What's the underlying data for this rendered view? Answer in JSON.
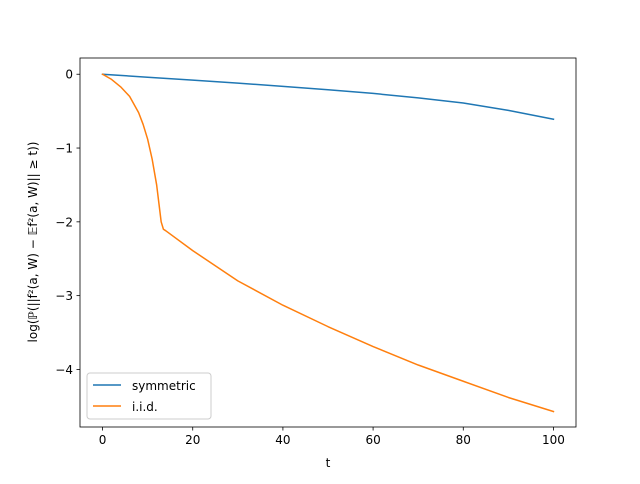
{
  "chart_data": {
    "type": "line",
    "xlabel": "t",
    "ylabel": "log(ℙ(||f²(a, W) − 𝔼f²(a, W)|| ≥ t))",
    "xlim": [
      -5,
      105
    ],
    "ylim": [
      -4.78,
      0.22
    ],
    "x_ticks": [
      0,
      20,
      40,
      60,
      80,
      100
    ],
    "y_ticks": [
      0,
      -1,
      -2,
      -3,
      -4
    ],
    "grid": false,
    "legend_position": "lower-left",
    "series": [
      {
        "name": "symmetric",
        "color": "#1f77b4",
        "x": [
          0,
          10,
          20,
          30,
          40,
          50,
          60,
          70,
          80,
          90,
          100
        ],
        "y": [
          0,
          -0.04,
          -0.08,
          -0.12,
          -0.165,
          -0.21,
          -0.26,
          -0.32,
          -0.39,
          -0.49,
          -0.61
        ]
      },
      {
        "name": "i.i.d.",
        "color": "#ff7f0e",
        "x": [
          0,
          2,
          4,
          6,
          8,
          9,
          10,
          11,
          12,
          12.5,
          13,
          13.5,
          14,
          20,
          30,
          40,
          50,
          60,
          70,
          80,
          90,
          100
        ],
        "y": [
          0,
          -0.07,
          -0.17,
          -0.3,
          -0.52,
          -0.68,
          -0.88,
          -1.15,
          -1.5,
          -1.75,
          -2.0,
          -2.1,
          -2.12,
          -2.39,
          -2.8,
          -3.13,
          -3.42,
          -3.69,
          -3.94,
          -4.16,
          -4.38,
          -4.57
        ]
      }
    ]
  }
}
